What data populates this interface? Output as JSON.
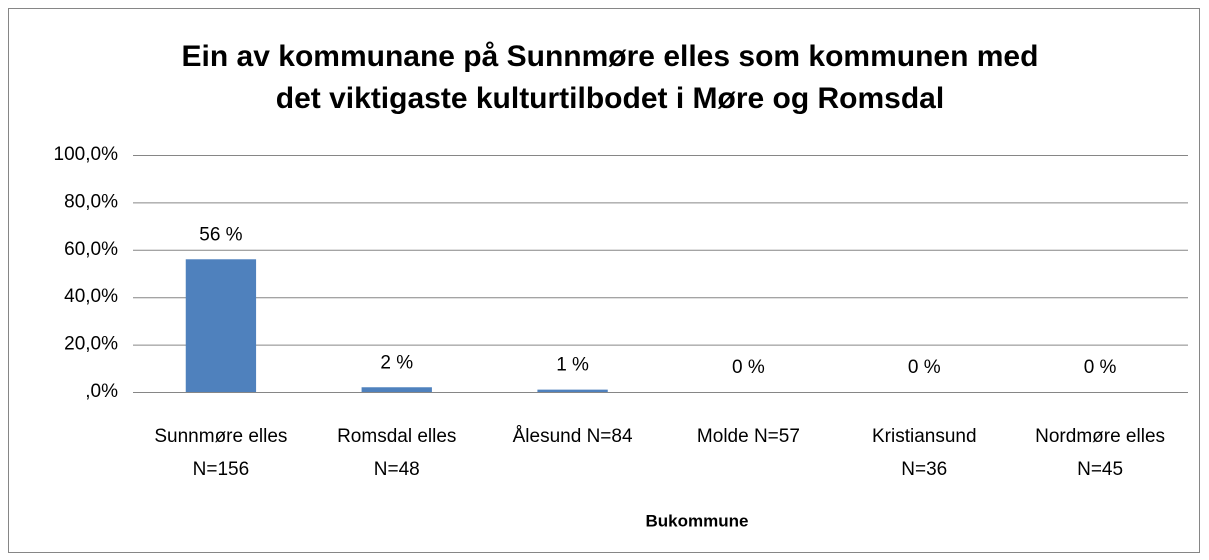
{
  "chart_data": {
    "type": "bar",
    "title": [
      "Ein av kommunane på Sunnmøre elles som kommunen med",
      "det viktigaste kulturtilbodet i Møre og Romsdal"
    ],
    "x_label": "Bukommune",
    "categories": [
      [
        "Sunnmøre elles",
        "N=156"
      ],
      [
        "Romsdal elles",
        "N=48"
      ],
      [
        "Ålesund N=84"
      ],
      [
        "Molde N=57"
      ],
      [
        "Kristiansund",
        "N=36"
      ],
      [
        "Nordmøre elles",
        "N=45"
      ]
    ],
    "values": [
      56,
      2,
      1,
      0,
      0,
      0
    ],
    "value_labels": [
      "56 %",
      "2 %",
      "1 %",
      "0 %",
      "0 %",
      "0 %"
    ],
    "color": "#4f81bd",
    "ylim": [
      0,
      100
    ],
    "yticks": [
      {
        "value": 0,
        "label": ",0%"
      },
      {
        "value": 20,
        "label": "20,0%"
      },
      {
        "value": 40,
        "label": "40,0%"
      },
      {
        "value": 60,
        "label": "60,0%"
      },
      {
        "value": 80,
        "label": "80,0%"
      },
      {
        "value": 100,
        "label": "100,0%"
      }
    ],
    "grid": true
  }
}
